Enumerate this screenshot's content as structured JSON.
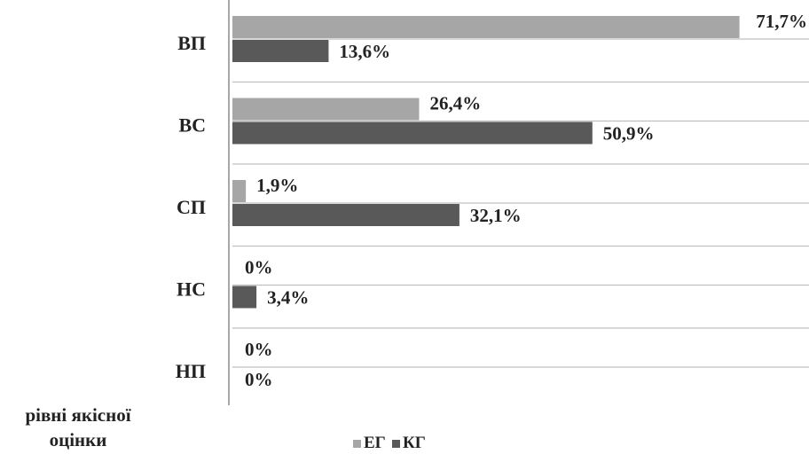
{
  "chart_data": {
    "type": "bar",
    "orientation": "horizontal",
    "categories": [
      "ВП",
      "ВС",
      "СП",
      "НС",
      "НП"
    ],
    "series": [
      {
        "name": "ЕГ",
        "color": "#a6a6a6",
        "values": [
          71.7,
          26.4,
          1.9,
          0,
          0
        ],
        "labels": [
          "71,7%",
          "26,4%",
          "1,9%",
          "0%",
          "0%"
        ]
      },
      {
        "name": "КГ",
        "color": "#595959",
        "values": [
          13.6,
          50.9,
          32.1,
          3.4,
          0
        ],
        "labels": [
          "13,6%",
          "50,9%",
          "32,1%",
          "3,4%",
          "0%"
        ]
      }
    ],
    "value_unit": "%",
    "xlim": [
      0,
      72
    ],
    "axis_label": "рівні якісної оцінки",
    "axis_label_lines": [
      "рівні якісної",
      "оцінки"
    ],
    "legend_position": "bottom",
    "grid": true,
    "gridline_color": "#bfbfbf",
    "plot_background": "#ffffff",
    "outer_background": "#ffffff"
  }
}
